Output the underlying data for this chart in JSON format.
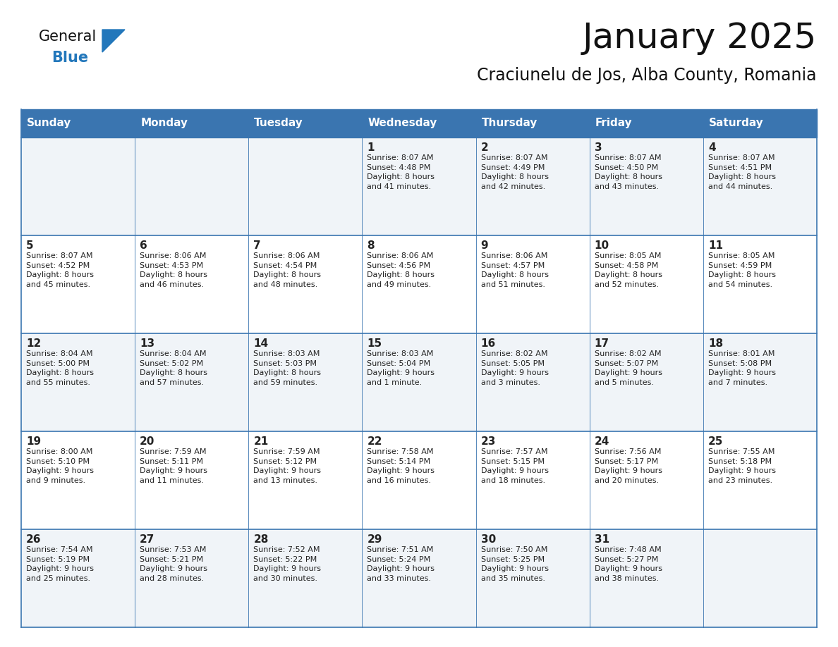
{
  "title": "January 2025",
  "subtitle": "Craciunelu de Jos, Alba County, Romania",
  "days_of_week": [
    "Sunday",
    "Monday",
    "Tuesday",
    "Wednesday",
    "Thursday",
    "Friday",
    "Saturday"
  ],
  "header_bg": "#3A75B0",
  "header_text": "#FFFFFF",
  "cell_bg_odd": "#F0F4F8",
  "cell_bg_even": "#FFFFFF",
  "border_color": "#3A75B0",
  "text_color": "#222222",
  "day_number_color": "#222222",
  "title_color": "#111111",
  "subtitle_color": "#111111",
  "generalblue_black": "#111111",
  "generalblue_blue": "#2277BB",
  "logo_triangle_color": "#2277BB",
  "weeks": [
    [
      {
        "day": null,
        "info": ""
      },
      {
        "day": null,
        "info": ""
      },
      {
        "day": null,
        "info": ""
      },
      {
        "day": 1,
        "info": "Sunrise: 8:07 AM\nSunset: 4:48 PM\nDaylight: 8 hours\nand 41 minutes."
      },
      {
        "day": 2,
        "info": "Sunrise: 8:07 AM\nSunset: 4:49 PM\nDaylight: 8 hours\nand 42 minutes."
      },
      {
        "day": 3,
        "info": "Sunrise: 8:07 AM\nSunset: 4:50 PM\nDaylight: 8 hours\nand 43 minutes."
      },
      {
        "day": 4,
        "info": "Sunrise: 8:07 AM\nSunset: 4:51 PM\nDaylight: 8 hours\nand 44 minutes."
      }
    ],
    [
      {
        "day": 5,
        "info": "Sunrise: 8:07 AM\nSunset: 4:52 PM\nDaylight: 8 hours\nand 45 minutes."
      },
      {
        "day": 6,
        "info": "Sunrise: 8:06 AM\nSunset: 4:53 PM\nDaylight: 8 hours\nand 46 minutes."
      },
      {
        "day": 7,
        "info": "Sunrise: 8:06 AM\nSunset: 4:54 PM\nDaylight: 8 hours\nand 48 minutes."
      },
      {
        "day": 8,
        "info": "Sunrise: 8:06 AM\nSunset: 4:56 PM\nDaylight: 8 hours\nand 49 minutes."
      },
      {
        "day": 9,
        "info": "Sunrise: 8:06 AM\nSunset: 4:57 PM\nDaylight: 8 hours\nand 51 minutes."
      },
      {
        "day": 10,
        "info": "Sunrise: 8:05 AM\nSunset: 4:58 PM\nDaylight: 8 hours\nand 52 minutes."
      },
      {
        "day": 11,
        "info": "Sunrise: 8:05 AM\nSunset: 4:59 PM\nDaylight: 8 hours\nand 54 minutes."
      }
    ],
    [
      {
        "day": 12,
        "info": "Sunrise: 8:04 AM\nSunset: 5:00 PM\nDaylight: 8 hours\nand 55 minutes."
      },
      {
        "day": 13,
        "info": "Sunrise: 8:04 AM\nSunset: 5:02 PM\nDaylight: 8 hours\nand 57 minutes."
      },
      {
        "day": 14,
        "info": "Sunrise: 8:03 AM\nSunset: 5:03 PM\nDaylight: 8 hours\nand 59 minutes."
      },
      {
        "day": 15,
        "info": "Sunrise: 8:03 AM\nSunset: 5:04 PM\nDaylight: 9 hours\nand 1 minute."
      },
      {
        "day": 16,
        "info": "Sunrise: 8:02 AM\nSunset: 5:05 PM\nDaylight: 9 hours\nand 3 minutes."
      },
      {
        "day": 17,
        "info": "Sunrise: 8:02 AM\nSunset: 5:07 PM\nDaylight: 9 hours\nand 5 minutes."
      },
      {
        "day": 18,
        "info": "Sunrise: 8:01 AM\nSunset: 5:08 PM\nDaylight: 9 hours\nand 7 minutes."
      }
    ],
    [
      {
        "day": 19,
        "info": "Sunrise: 8:00 AM\nSunset: 5:10 PM\nDaylight: 9 hours\nand 9 minutes."
      },
      {
        "day": 20,
        "info": "Sunrise: 7:59 AM\nSunset: 5:11 PM\nDaylight: 9 hours\nand 11 minutes."
      },
      {
        "day": 21,
        "info": "Sunrise: 7:59 AM\nSunset: 5:12 PM\nDaylight: 9 hours\nand 13 minutes."
      },
      {
        "day": 22,
        "info": "Sunrise: 7:58 AM\nSunset: 5:14 PM\nDaylight: 9 hours\nand 16 minutes."
      },
      {
        "day": 23,
        "info": "Sunrise: 7:57 AM\nSunset: 5:15 PM\nDaylight: 9 hours\nand 18 minutes."
      },
      {
        "day": 24,
        "info": "Sunrise: 7:56 AM\nSunset: 5:17 PM\nDaylight: 9 hours\nand 20 minutes."
      },
      {
        "day": 25,
        "info": "Sunrise: 7:55 AM\nSunset: 5:18 PM\nDaylight: 9 hours\nand 23 minutes."
      }
    ],
    [
      {
        "day": 26,
        "info": "Sunrise: 7:54 AM\nSunset: 5:19 PM\nDaylight: 9 hours\nand 25 minutes."
      },
      {
        "day": 27,
        "info": "Sunrise: 7:53 AM\nSunset: 5:21 PM\nDaylight: 9 hours\nand 28 minutes."
      },
      {
        "day": 28,
        "info": "Sunrise: 7:52 AM\nSunset: 5:22 PM\nDaylight: 9 hours\nand 30 minutes."
      },
      {
        "day": 29,
        "info": "Sunrise: 7:51 AM\nSunset: 5:24 PM\nDaylight: 9 hours\nand 33 minutes."
      },
      {
        "day": 30,
        "info": "Sunrise: 7:50 AM\nSunset: 5:25 PM\nDaylight: 9 hours\nand 35 minutes."
      },
      {
        "day": 31,
        "info": "Sunrise: 7:48 AM\nSunset: 5:27 PM\nDaylight: 9 hours\nand 38 minutes."
      },
      {
        "day": null,
        "info": ""
      }
    ]
  ]
}
